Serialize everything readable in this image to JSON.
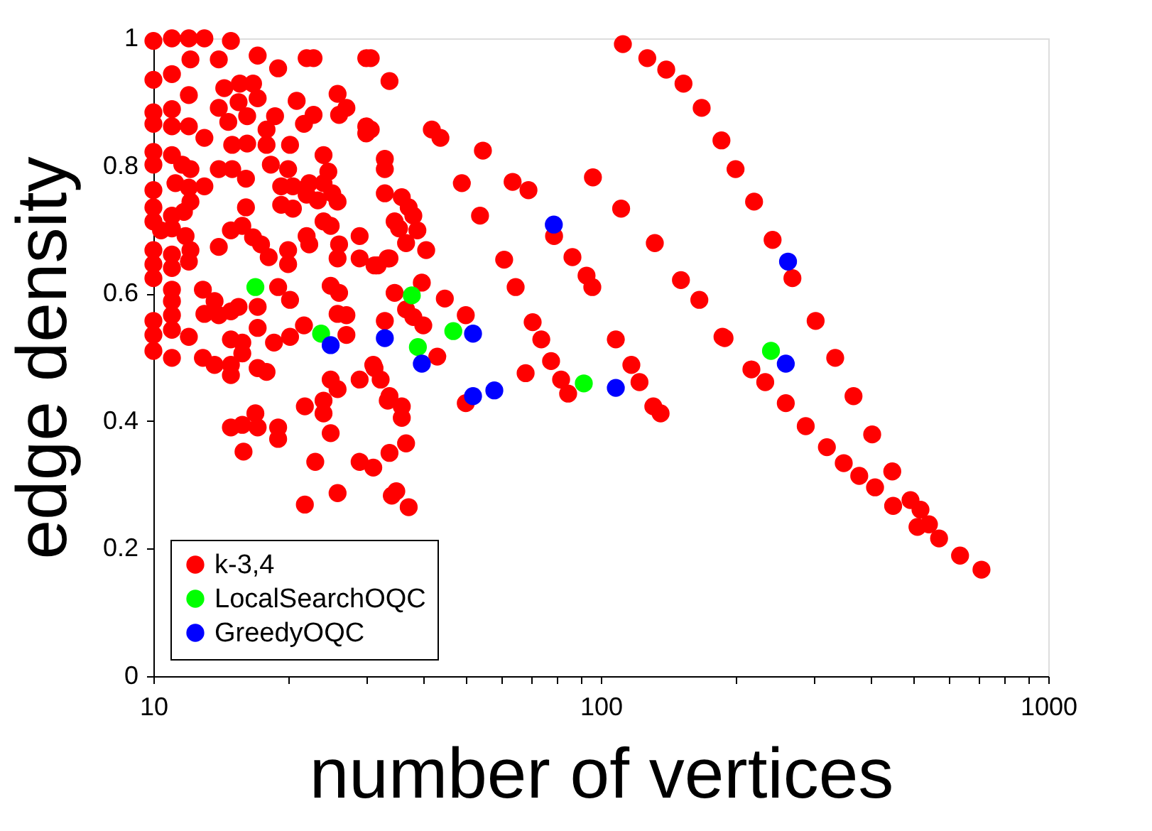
{
  "chart_data": {
    "type": "scatter",
    "xlabel": "number of vertices",
    "ylabel": "edge density",
    "log": "x",
    "xlim": [
      10,
      1000
    ],
    "ylim": [
      0,
      1
    ],
    "xticks": [
      10,
      {
        "value": 20,
        "label": null
      },
      {
        "value": 30,
        "label": null
      },
      {
        "value": 40,
        "label": null
      },
      {
        "value": 50,
        "label": null
      },
      {
        "value": 60,
        "label": null
      },
      {
        "value": 70,
        "label": null
      },
      {
        "value": 80,
        "label": null
      },
      {
        "value": 90,
        "label": null
      },
      100,
      {
        "value": 200,
        "label": null
      },
      {
        "value": 300,
        "label": null
      },
      {
        "value": 400,
        "label": null
      },
      {
        "value": 500,
        "label": null
      },
      {
        "value": 600,
        "label": null
      },
      {
        "value": 700,
        "label": null
      },
      {
        "value": 800,
        "label": null
      },
      {
        "value": 900,
        "label": null
      },
      1000
    ],
    "yticks": [
      0,
      0.2,
      0.4,
      0.6,
      0.8,
      1
    ],
    "grid": false,
    "legend": "bottom left",
    "marker": "circle",
    "series": [
      {
        "name": "k-3,4",
        "color": "#ff0000",
        "x": [
          112,
          127,
          140,
          153,
          168,
          186,
          200,
          220,
          242,
          268,
          302,
          334,
          367,
          404,
          448,
          450,
          492,
          510,
          518,
          541,
          570,
          635,
          709,
          96,
          111,
          132,
          151,
          166,
          189,
          217,
          233,
          259,
          287,
          320,
          349,
          378,
          410,
          41.9,
          43.8,
          48.9,
          53.7,
          54.5,
          60.8,
          63.5,
          64.5,
          67.9,
          68.9,
          70.4,
          73.6,
          77.4,
          78.6,
          81.5,
          84.5,
          86.4,
          92.9,
          95.7,
          108,
          117,
          122,
          131,
          136,
          187,
          33.7,
          30.6,
          30.6,
          32.9,
          32.9,
          32.9,
          35.9,
          37.2,
          38.1,
          38.9,
          36.7,
          34.6,
          35.4,
          40.7,
          33.7,
          31.7,
          39.8,
          44.8,
          49.9,
          32.9,
          40.1,
          43.1,
          36.7,
          38.1,
          31.2,
          32.2,
          33.7,
          35.9,
          35.9,
          49.9,
          36.7,
          33.7,
          12.9,
          13.7,
          14.9,
          14.9,
          15.8,
          17.1,
          17.9,
          14.9,
          15.8,
          16.9,
          17.1,
          19.0,
          19.0,
          15.9,
          21.8,
          24.0,
          25.8,
          24.9,
          24.0,
          24.9,
          23.0,
          28.9,
          31.0,
          33.4,
          28.9,
          31.0,
          25.8,
          21.8,
          34.1,
          34.9,
          37.2,
          10.0,
          11.0,
          12.0,
          13.0,
          14.9,
          17.1,
          22.0,
          22.8,
          29.9,
          11.0,
          10.0,
          12.1,
          14.0,
          19.0,
          14.4,
          15.6,
          16.7,
          14.0,
          15.5,
          17.1,
          12.0,
          25.8,
          20.9,
          27.0,
          22.8,
          26.0,
          11.0,
          10.0,
          10.0,
          14.7,
          16.2,
          18.7,
          21.7,
          29.9,
          29.9,
          11.0,
          12.0,
          17.9,
          20.2,
          13.0,
          15.0,
          16.2,
          17.9,
          10.0,
          10.0,
          11.0,
          11.6,
          12.1,
          24.0,
          18.3,
          14.0,
          15.0,
          16.1,
          20.0,
          24.6,
          11.2,
          12.0,
          12.1,
          11.7,
          13.0,
          19.3,
          20.5,
          10.0,
          10.0,
          22.3,
          24.0,
          25.1,
          22.0,
          23.3,
          25.8,
          16.1,
          19.3,
          20.5,
          11.0,
          11.0,
          10.0,
          10.4,
          14.9,
          15.8,
          16.7,
          17.4,
          18.1,
          24.0,
          24.9,
          22.0,
          28.9,
          14.0,
          11.8,
          12.1,
          12.0,
          20.0,
          20.0,
          22.3,
          26.0,
          25.8,
          28.9,
          31.2,
          33.4,
          10.0,
          10.0,
          10.0,
          11.0,
          11.0,
          12.9,
          13.7,
          14.9,
          15.5,
          19.0,
          20.2,
          24.9,
          26.0,
          17.1,
          11.0,
          11.0,
          10.0,
          10.0,
          11.0,
          11.0,
          12.0,
          13.0,
          14.0,
          17.1,
          14.9,
          15.8,
          18.6,
          20.2,
          21.7,
          25.8,
          27.0,
          27.0,
          34.6,
          10.0,
          11.0
        ],
        "values": [
          0.991,
          0.969,
          0.951,
          0.929,
          0.891,
          0.84,
          0.795,
          0.744,
          0.684,
          0.624,
          0.557,
          0.499,
          0.439,
          0.379,
          0.321,
          0.267,
          0.276,
          0.234,
          0.261,
          0.238,
          0.216,
          0.189,
          0.167,
          0.782,
          0.733,
          0.679,
          0.621,
          0.59,
          0.53,
          0.481,
          0.461,
          0.428,
          0.392,
          0.359,
          0.334,
          0.314,
          0.296,
          0.857,
          0.844,
          0.773,
          0.722,
          0.824,
          0.653,
          0.775,
          0.61,
          0.475,
          0.762,
          0.555,
          0.528,
          0.494,
          0.69,
          0.465,
          0.443,
          0.657,
          0.628,
          0.61,
          0.528,
          0.488,
          0.461,
          0.423,
          0.412,
          0.532,
          0.933,
          0.969,
          0.857,
          0.811,
          0.795,
          0.757,
          0.751,
          0.735,
          0.722,
          0.699,
          0.679,
          0.713,
          0.702,
          0.668,
          0.655,
          0.644,
          0.617,
          0.592,
          0.566,
          0.557,
          0.55,
          0.501,
          0.575,
          0.563,
          0.483,
          0.465,
          0.439,
          0.423,
          0.405,
          0.428,
          0.365,
          0.35,
          0.499,
          0.488,
          0.472,
          0.488,
          0.506,
          0.483,
          0.477,
          0.39,
          0.394,
          0.412,
          0.39,
          0.39,
          0.372,
          0.352,
          0.423,
          0.432,
          0.45,
          0.465,
          0.412,
          0.381,
          0.336,
          0.465,
          0.488,
          0.432,
          0.336,
          0.327,
          0.287,
          0.269,
          0.283,
          0.29,
          0.265,
          0.996,
          1.0,
          1.0,
          1.0,
          0.996,
          0.973,
          0.969,
          0.969,
          0.969,
          0.944,
          0.935,
          0.967,
          0.967,
          0.953,
          0.922,
          0.929,
          0.929,
          0.891,
          0.9,
          0.906,
          0.911,
          0.913,
          0.902,
          0.891,
          0.88,
          0.88,
          0.889,
          0.884,
          0.866,
          0.869,
          0.878,
          0.878,
          0.866,
          0.862,
          0.851,
          0.862,
          0.862,
          0.857,
          0.833,
          0.844,
          0.833,
          0.835,
          0.833,
          0.822,
          0.802,
          0.817,
          0.802,
          0.795,
          0.817,
          0.802,
          0.795,
          0.795,
          0.78,
          0.795,
          0.791,
          0.773,
          0.766,
          0.744,
          0.728,
          0.768,
          0.768,
          0.768,
          0.762,
          0.735,
          0.773,
          0.773,
          0.757,
          0.755,
          0.746,
          0.744,
          0.735,
          0.739,
          0.733,
          0.722,
          0.702,
          0.713,
          0.699,
          0.699,
          0.706,
          0.688,
          0.677,
          0.657,
          0.713,
          0.706,
          0.69,
          0.69,
          0.673,
          0.69,
          0.668,
          0.65,
          0.668,
          0.646,
          0.677,
          0.677,
          0.655,
          0.655,
          0.644,
          0.655,
          0.668,
          0.646,
          0.624,
          0.661,
          0.64,
          0.606,
          0.588,
          0.572,
          0.579,
          0.61,
          0.59,
          0.612,
          0.601,
          0.579,
          0.606,
          0.588,
          0.557,
          0.535,
          0.566,
          0.543,
          0.532,
          0.568,
          0.566,
          0.546,
          0.528,
          0.523,
          0.523,
          0.532,
          0.55,
          0.568,
          0.566,
          0.535,
          0.601,
          0.51,
          0.499
        ]
      },
      {
        "name": "LocalSearchOQC",
        "color": "#00ff00",
        "x": [
          16.9,
          23.7,
          37.8,
          39.0,
          46.8,
          91.6,
          240
        ],
        "values": [
          0.61,
          0.537,
          0.597,
          0.516,
          0.541,
          0.459,
          0.51
        ]
      },
      {
        "name": "GreedyOQC",
        "color": "#0000ff",
        "x": [
          24.9,
          32.9,
          39.8,
          51.8,
          51.8,
          57.8,
          78.5,
          108,
          262,
          259
        ],
        "values": [
          0.519,
          0.53,
          0.49,
          0.537,
          0.439,
          0.448,
          0.708,
          0.452,
          0.65,
          0.49
        ]
      }
    ]
  }
}
